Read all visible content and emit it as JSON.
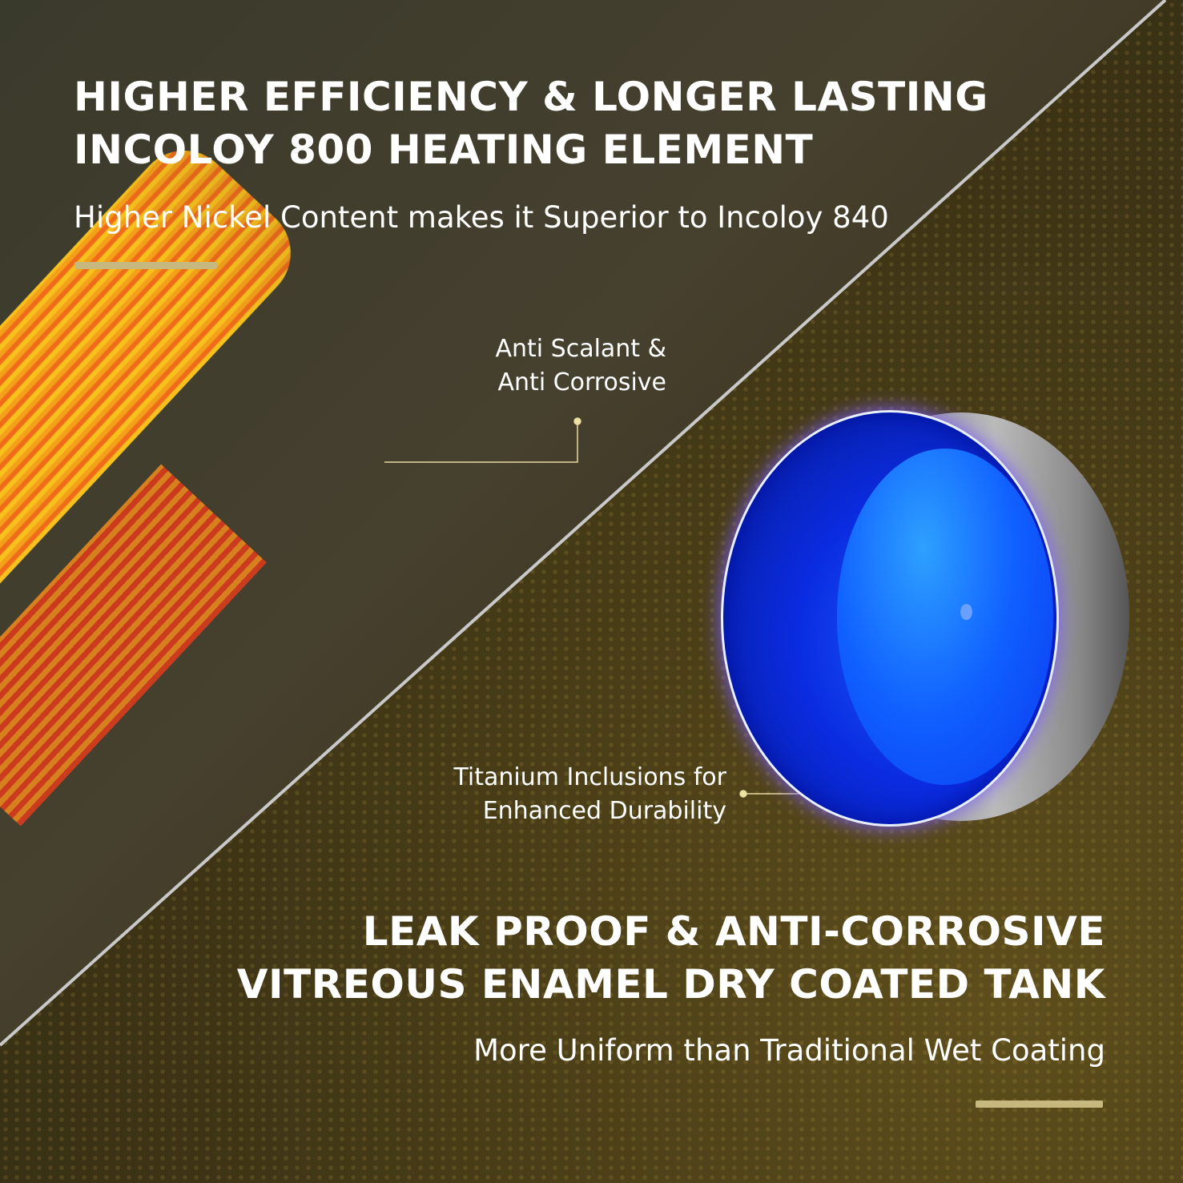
{
  "top": {
    "headline_line1": "HIGHER EFFICIENCY & LONGER LASTING",
    "headline_line2": "INCOLOY 800 HEATING ELEMENT",
    "subtitle": "Higher Nickel Content makes it Superior to Incoloy 840"
  },
  "callouts": {
    "heating_line1": "Anti Scalant &",
    "heating_line2": "Anti Corrosive",
    "tank_line1": "Titanium Inclusions for",
    "tank_line2": "Enhanced Durability"
  },
  "bottom": {
    "headline_line1": "LEAK PROOF & ANTI-CORROSIVE",
    "headline_line2": "VITREOUS ENAMEL DRY COATED TANK",
    "subtitle": "More Uniform than Traditional Wet Coating"
  },
  "colors": {
    "accent_bar": "#c7b87f",
    "callout_line": "#e8d9a0"
  }
}
